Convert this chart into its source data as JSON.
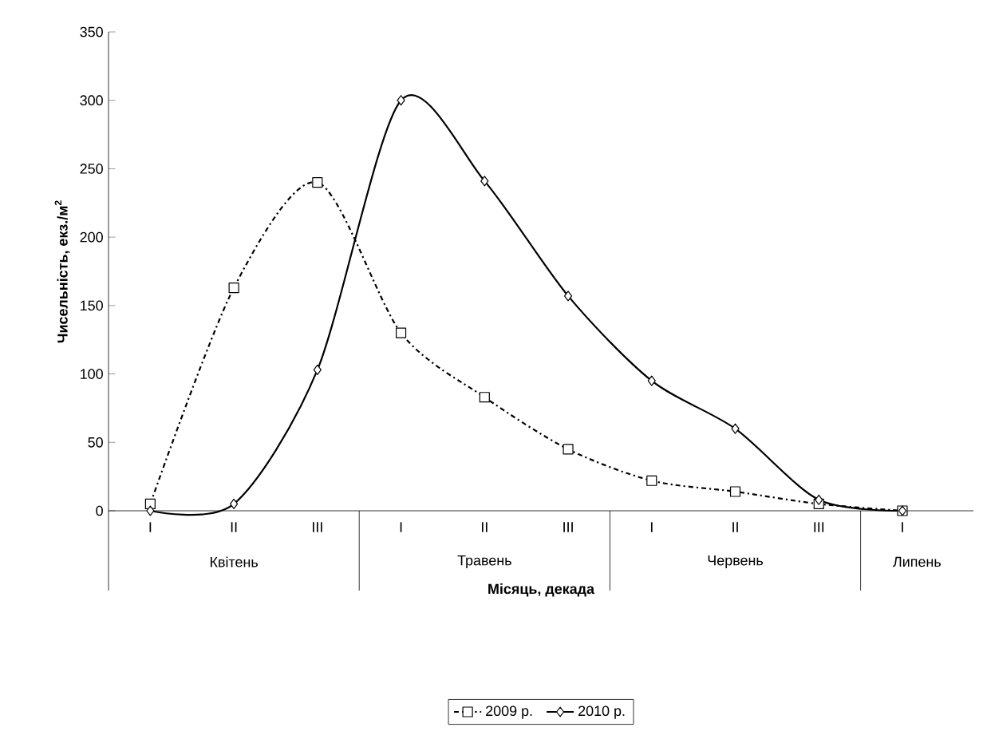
{
  "chart_data": {
    "type": "line",
    "xlabel": "Місяць, декада",
    "ylabel": "Чисельність, екз./м$^{2}$",
    "categories": [
      "I",
      "II",
      "III",
      "I",
      "II",
      "III",
      "I",
      "II",
      "III",
      "I"
    ],
    "ylim": [
      0,
      350
    ],
    "yticks": [
      0,
      50,
      100,
      150,
      200,
      250,
      300,
      350
    ],
    "grid": false,
    "legend": "bottom",
    "annotations": [
      "Квітень",
      "Травень",
      "Червень",
      "Липень"
    ],
    "series": [
      {
        "name": "2009 р.",
        "color": "#000000",
        "marker": "square",
        "line_style": "dashed",
        "values": [
          5,
          163,
          240,
          130,
          83,
          45,
          22,
          14,
          5,
          0
        ]
      },
      {
        "name": "2010 р.",
        "color": "#000000",
        "marker": "diamond",
        "line_style": "solid",
        "values": [
          0,
          5,
          103,
          300,
          241,
          157,
          95,
          60,
          8,
          0
        ]
      }
    ]
  }
}
